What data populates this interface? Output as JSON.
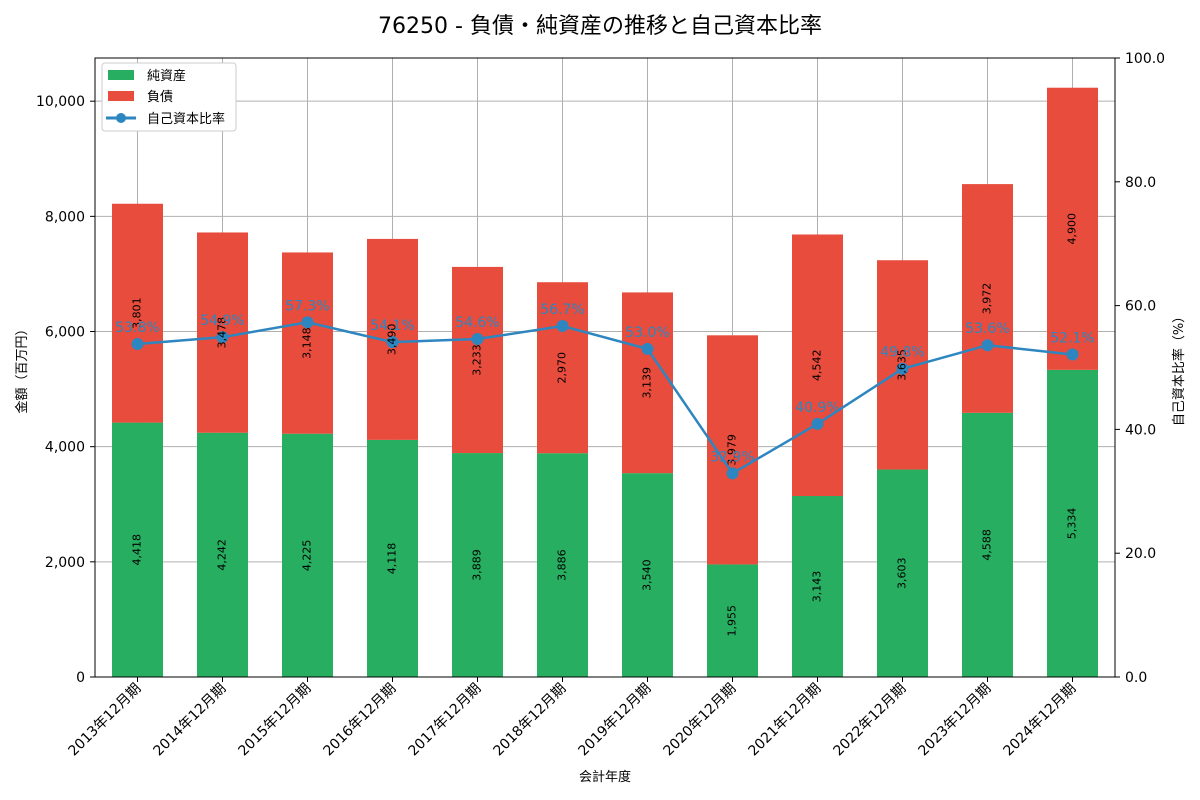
{
  "colors": {
    "net_assets": "#27ae60",
    "liabilities": "#e74c3c",
    "ratio": "#2e86c1",
    "grid": "#b0b0b0"
  },
  "chart_data": {
    "type": "bar",
    "stacked": true,
    "title": "76250 - 負債・純資産の推移と自己資本比率",
    "xlabel": "会計年度",
    "ylabel": "金額（百万円）",
    "y2label": "自己資本比率（%）",
    "ylim": [
      0,
      10750
    ],
    "y2lim": [
      0,
      100
    ],
    "yticks": [
      0,
      2000,
      4000,
      6000,
      8000,
      10000
    ],
    "ytick_labels": [
      "0",
      "2,000",
      "4,000",
      "6,000",
      "8,000",
      "10,000"
    ],
    "y2ticks": [
      0,
      20,
      40,
      60,
      80,
      100
    ],
    "y2tick_labels": [
      "0.0",
      "20.0",
      "40.0",
      "60.0",
      "80.0",
      "100.0"
    ],
    "grid": true,
    "legend": "top-left",
    "categories": [
      "2013年12月期",
      "2014年12月期",
      "2015年12月期",
      "2016年12月期",
      "2017年12月期",
      "2018年12月期",
      "2019年12月期",
      "2020年12月期",
      "2021年12月期",
      "2022年12月期",
      "2023年12月期",
      "2024年12月期"
    ],
    "series": [
      {
        "name": "純資産",
        "kind": "bar",
        "values": [
          4418,
          4242,
          4225,
          4118,
          3889,
          3886,
          3540,
          1955,
          3143,
          3603,
          4588,
          5334
        ],
        "labels": [
          "4,418",
          "4,242",
          "4,225",
          "4,118",
          "3,889",
          "3,886",
          "3,540",
          "1,955",
          "3,143",
          "3,603",
          "4,588",
          "5,334"
        ]
      },
      {
        "name": "負債",
        "kind": "bar",
        "values": [
          3801,
          3478,
          3148,
          3490,
          3233,
          2970,
          3139,
          3979,
          4542,
          3635,
          3972,
          4900
        ],
        "labels": [
          "3,801",
          "3,478",
          "3,148",
          "3,490",
          "3,233",
          "2,970",
          "3,139",
          "3,979",
          "4,542",
          "3,635",
          "3,972",
          "4,900"
        ]
      },
      {
        "name": "自己資本比率",
        "kind": "line",
        "axis": "right",
        "values": [
          53.8,
          54.9,
          57.3,
          54.1,
          54.6,
          56.7,
          53.0,
          32.9,
          40.9,
          49.8,
          53.6,
          52.1
        ],
        "labels": [
          "53.8%",
          "54.9%",
          "57.3%",
          "54.1%",
          "54.6%",
          "56.7%",
          "53.0%",
          "32.9%",
          "40.9%",
          "49.8%",
          "53.6%",
          "52.1%"
        ]
      }
    ]
  }
}
